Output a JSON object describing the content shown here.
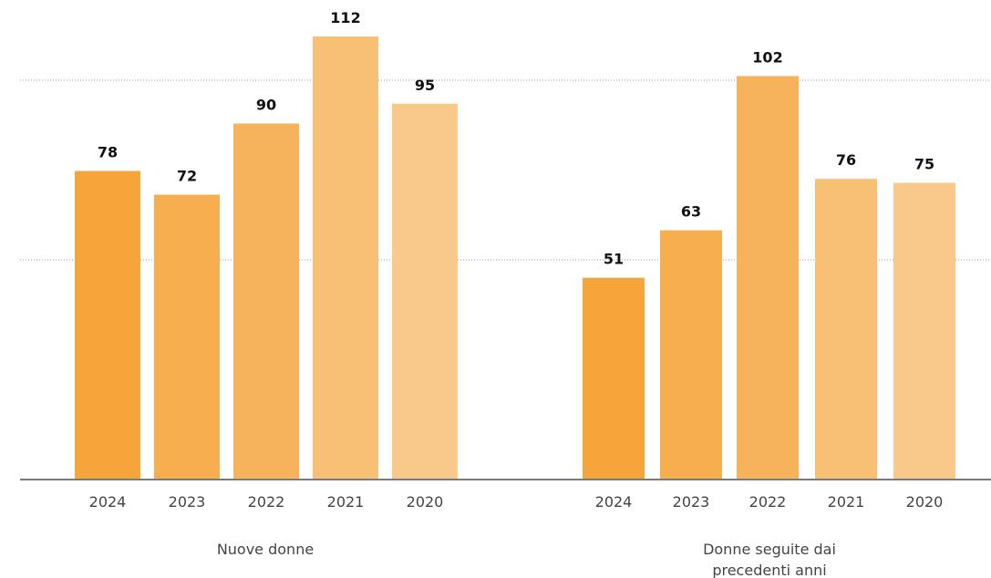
{
  "chart_data": {
    "type": "bar",
    "ylim": [
      0,
      112
    ],
    "grid": "dotted horizontal",
    "groups": [
      {
        "label_lines": [
          "Nuove donne"
        ],
        "categories": [
          "2024",
          "2023",
          "2022",
          "2021",
          "2020"
        ],
        "values": [
          78,
          72,
          90,
          112,
          95
        ],
        "colors": [
          "#F6A53B",
          "#F6AE4F",
          "#F6B35C",
          "#F7C074",
          "#F8C98A"
        ]
      },
      {
        "label_lines": [
          "Donne seguite dai",
          "precedenti anni"
        ],
        "categories": [
          "2024",
          "2023",
          "2022",
          "2021",
          "2020"
        ],
        "values": [
          51,
          63,
          102,
          76,
          75
        ],
        "colors": [
          "#F6A53B",
          "#F6AE4F",
          "#F6B35C",
          "#F7C074",
          "#F8C98A"
        ]
      }
    ]
  }
}
